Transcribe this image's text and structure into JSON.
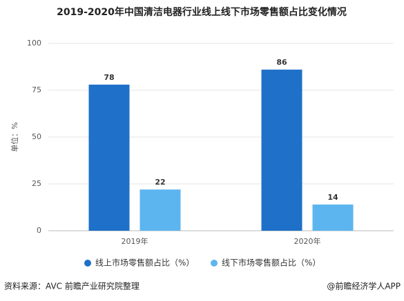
{
  "chart_data": {
    "type": "bar",
    "title": "2019-2020年中国清洁电器行业线上线下市场零售额占比变化情况",
    "y_label": "单位：%",
    "categories": [
      "2019年",
      "2020年"
    ],
    "series": [
      {
        "name": "线上市场零售额占比（%）",
        "color": "#1f70c8",
        "values": [
          78,
          86
        ]
      },
      {
        "name": "线下市场零售额占比（%）",
        "color": "#5cb5ef",
        "values": [
          22,
          14
        ]
      }
    ],
    "ylim": [
      0,
      100
    ],
    "yticks": [
      0,
      25,
      50,
      75,
      100
    ],
    "grid": true,
    "legend": "bottom"
  },
  "footer": {
    "source": "资料来源：AVC 前瞻产业研究院整理",
    "credit": "@前瞻经济学人APP"
  }
}
